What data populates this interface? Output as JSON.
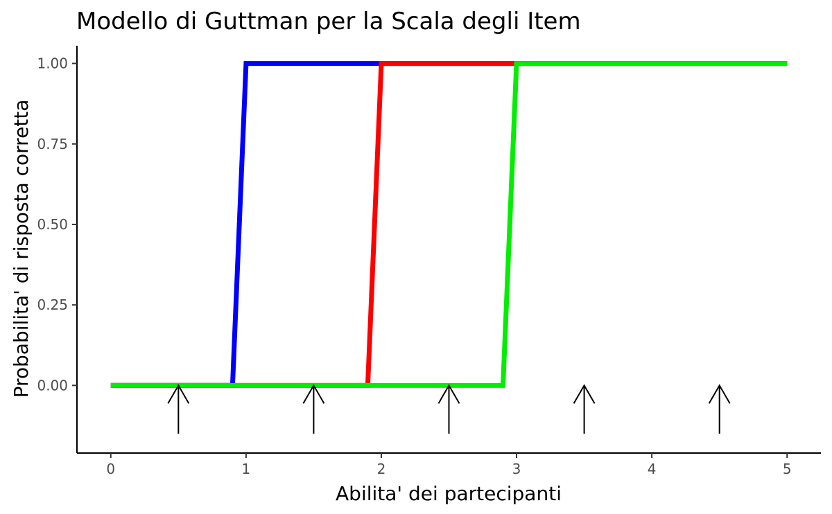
{
  "chart_data": {
    "type": "line",
    "title": "Modello di Guttman per la Scala degli Item",
    "xlabel": "Abilita' dei partecipanti",
    "ylabel": "Probabilita' di risposta corretta",
    "xlim": [
      -0.25,
      5.25
    ],
    "ylim": [
      -0.21,
      1.055
    ],
    "x_ticks": [
      0,
      1,
      2,
      3,
      4,
      5
    ],
    "y_ticks": [
      0,
      0.25,
      0.5,
      0.75,
      1
    ],
    "y_tick_labels": [
      "0.00",
      "0.25",
      "0.50",
      "0.75",
      "1.00"
    ],
    "grid": false,
    "series": [
      {
        "color": "#0000FF",
        "x": [
          0,
          0.9,
          1,
          5
        ],
        "y": [
          0,
          0,
          1,
          1
        ]
      },
      {
        "color": "#FF0000",
        "x": [
          0,
          1.9,
          2,
          5
        ],
        "y": [
          0,
          0,
          1,
          1
        ]
      },
      {
        "color": "#00EE00",
        "x": [
          0,
          2.9,
          3,
          5
        ],
        "y": [
          0,
          0,
          1,
          1
        ]
      }
    ],
    "arrows": [
      {
        "x": 0.5,
        "y_from": -0.15,
        "y_to": 0
      },
      {
        "x": 1.5,
        "y_from": -0.15,
        "y_to": 0
      },
      {
        "x": 2.5,
        "y_from": -0.15,
        "y_to": 0
      },
      {
        "x": 3.5,
        "y_from": -0.15,
        "y_to": 0
      },
      {
        "x": 4.5,
        "y_from": -0.15,
        "y_to": 0
      }
    ]
  }
}
